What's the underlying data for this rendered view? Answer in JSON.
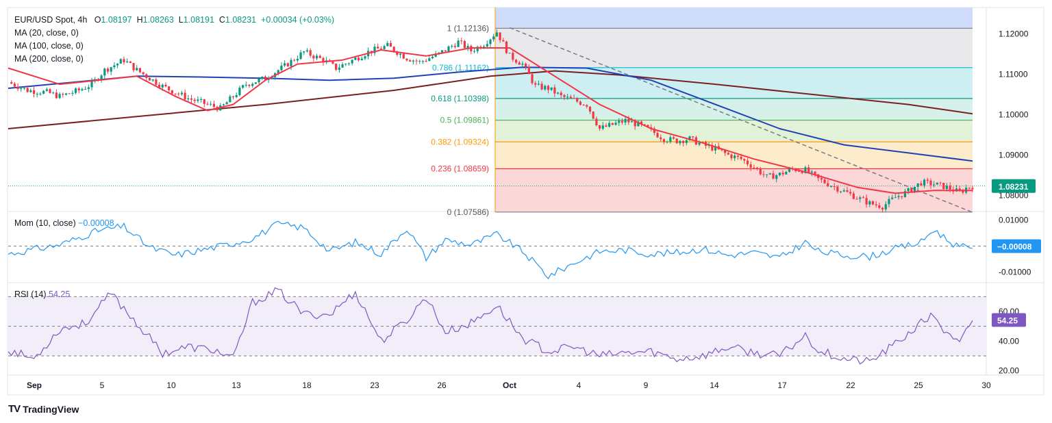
{
  "header": {
    "symbol": "EUR/USD Spot, 4h",
    "o_label": "O",
    "o": "1.08197",
    "h_label": "H",
    "h": "1.08263",
    "l_label": "L",
    "l": "1.08191",
    "c_label": "C",
    "c": "1.08231",
    "change": "+0.00034 (+0.03%)"
  },
  "indicators": {
    "ma20": "MA (20, close, 0)",
    "ma100": "MA (100, close, 0)",
    "ma200": "MA (200, close, 0)",
    "mom_label": "Mom (10, close)",
    "mom_value": "−0.00008",
    "rsi_label": "RSI (14)",
    "rsi_value": "54.25"
  },
  "brand": {
    "name": "TradingView",
    "logo": "TV"
  },
  "colors": {
    "up": "#089981",
    "down": "#f23645",
    "ma20": "#f23645",
    "ma100": "#2041b5",
    "ma200": "#7b1e22",
    "mom": "#2196f3",
    "rsi": "#7e57c2",
    "trend": "#787b86",
    "price_badge": "#089981",
    "mom_badge": "#2196f3",
    "rsi_badge": "#7e57c2"
  },
  "chart_data": [
    {
      "type": "candlestick",
      "title": "EUR/USD Spot, 4h",
      "x_ticks": [
        "Sep",
        "5",
        "10",
        "13",
        "18",
        "23",
        "26",
        "Oct",
        "4",
        "9",
        "14",
        "17",
        "22",
        "25",
        "30"
      ],
      "y_ticks": [
        "1.12000",
        "1.11000",
        "1.10000",
        "1.09000",
        "1.08000"
      ],
      "ylim": [
        1.076,
        1.1265
      ],
      "last_price": "1.08231",
      "close_path": [
        [
          0,
          1.108
        ],
        [
          3,
          1.106
        ],
        [
          6,
          1.1055
        ],
        [
          8,
          1.1045
        ],
        [
          11,
          1.106
        ],
        [
          13,
          1.1075
        ],
        [
          15,
          1.111
        ],
        [
          18,
          1.1135
        ],
        [
          20,
          1.111
        ],
        [
          22,
          1.109
        ],
        [
          24,
          1.107
        ],
        [
          26,
          1.1055
        ],
        [
          28,
          1.104
        ],
        [
          31,
          1.1025
        ],
        [
          33,
          1.1015
        ],
        [
          35,
          1.1045
        ],
        [
          37,
          1.1075
        ],
        [
          40,
          1.109
        ],
        [
          43,
          1.112
        ],
        [
          46,
          1.1155
        ],
        [
          49,
          1.1135
        ],
        [
          51,
          1.1115
        ],
        [
          53,
          1.113
        ],
        [
          56,
          1.1155
        ],
        [
          59,
          1.117
        ],
        [
          62,
          1.114
        ],
        [
          64,
          1.113
        ],
        [
          67,
          1.115
        ],
        [
          70,
          1.118
        ],
        [
          72,
          1.1158
        ],
        [
          74,
          1.1175
        ],
        [
          76,
          1.1205
        ],
        [
          78,
          1.1145
        ],
        [
          80,
          1.1125
        ],
        [
          82,
          1.107
        ],
        [
          84,
          1.1065
        ],
        [
          86,
          1.1045
        ],
        [
          88,
          1.1035
        ],
        [
          90,
          1.1025
        ],
        [
          92,
          1.0965
        ],
        [
          94,
          1.0975
        ],
        [
          96,
          1.0985
        ],
        [
          98,
          1.0975
        ],
        [
          100,
          1.096
        ],
        [
          102,
          1.094
        ],
        [
          104,
          1.0935
        ],
        [
          106,
          1.094
        ],
        [
          108,
          1.0925
        ],
        [
          110,
          1.0915
        ],
        [
          112,
          1.09
        ],
        [
          114,
          1.089
        ],
        [
          116,
          1.087
        ],
        [
          118,
          1.0845
        ],
        [
          120,
          1.0852
        ],
        [
          122,
          1.0865
        ],
        [
          124,
          1.0862
        ],
        [
          126,
          1.084
        ],
        [
          128,
          1.0825
        ],
        [
          130,
          1.081
        ],
        [
          132,
          1.0795
        ],
        [
          134,
          1.078
        ],
        [
          136,
          1.0773
        ],
        [
          138,
          1.0795
        ],
        [
          140,
          1.081
        ],
        [
          142,
          1.0832
        ],
        [
          144,
          1.0828
        ],
        [
          146,
          1.082
        ],
        [
          148,
          1.0807
        ],
        [
          149,
          1.0818
        ],
        [
          150,
          1.08231
        ]
      ],
      "fibonacci": [
        {
          "label": "1 (1.12136)",
          "level": 1.0,
          "price": 1.12136
        },
        {
          "label": "0.786 (1.11162)",
          "level": 0.786,
          "price": 1.11162
        },
        {
          "label": "0.618 (1.10398)",
          "level": 0.618,
          "price": 1.10398
        },
        {
          "label": "0.5 (1.09861)",
          "level": 0.5,
          "price": 1.09861
        },
        {
          "label": "0.382 (1.09324)",
          "level": 0.382,
          "price": 1.09324
        },
        {
          "label": "0.236 (1.08659)",
          "level": 0.236,
          "price": 1.08659
        },
        {
          "label": "0 (1.07586)",
          "level": 0.0,
          "price": 1.07586
        }
      ],
      "series": [
        {
          "name": "MA (20, close, 0)",
          "values": [
            [
              0,
              1.1115
            ],
            [
              8,
              1.1075
            ],
            [
              14,
              1.1085
            ],
            [
              20,
              1.1095
            ],
            [
              26,
              1.1045
            ],
            [
              31,
              1.101
            ],
            [
              35,
              1.1025
            ],
            [
              40,
              1.1085
            ],
            [
              45,
              1.1125
            ],
            [
              52,
              1.1135
            ],
            [
              58,
              1.116
            ],
            [
              65,
              1.1145
            ],
            [
              72,
              1.1165
            ],
            [
              78,
              1.1165
            ],
            [
              84,
              1.1105
            ],
            [
              92,
              1.1025
            ],
            [
              100,
              1.0965
            ],
            [
              108,
              1.093
            ],
            [
              116,
              1.089
            ],
            [
              124,
              1.0858
            ],
            [
              132,
              1.082
            ],
            [
              138,
              1.0805
            ],
            [
              144,
              1.0812
            ],
            [
              150,
              1.0812
            ]
          ]
        },
        {
          "name": "MA (100, close, 0)",
          "values": [
            [
              0,
              1.1065
            ],
            [
              10,
              1.108
            ],
            [
              20,
              1.1095
            ],
            [
              30,
              1.1093
            ],
            [
              40,
              1.109
            ],
            [
              50,
              1.1085
            ],
            [
              60,
              1.109
            ],
            [
              70,
              1.1105
            ],
            [
              80,
              1.1117
            ],
            [
              90,
              1.1115
            ],
            [
              100,
              1.1085
            ],
            [
              110,
              1.1025
            ],
            [
              120,
              1.0965
            ],
            [
              130,
              1.0925
            ],
            [
              140,
              1.0905
            ],
            [
              150,
              1.0885
            ]
          ]
        },
        {
          "name": "MA (200, close, 0)",
          "values": [
            [
              0,
              1.0965
            ],
            [
              20,
              1.0995
            ],
            [
              40,
              1.1025
            ],
            [
              60,
              1.106
            ],
            [
              75,
              1.1095
            ],
            [
              85,
              1.1108
            ],
            [
              95,
              1.1098
            ],
            [
              110,
              1.1075
            ],
            [
              125,
              1.105
            ],
            [
              140,
              1.1025
            ],
            [
              150,
              1.1002
            ]
          ]
        }
      ]
    },
    {
      "type": "line",
      "title": "Mom (10, close)",
      "y_ticks": [
        "0.01000",
        "-0.01000"
      ],
      "ylim": [
        -0.0135,
        0.0125
      ],
      "series": [
        {
          "name": "Mom (10, close)",
          "values": [
            [
              0,
              -0.003
            ],
            [
              8,
              0.0005
            ],
            [
              14,
              0.006
            ],
            [
              18,
              0.0075
            ],
            [
              22,
              -0.0005
            ],
            [
              26,
              -0.0035
            ],
            [
              30,
              -0.0015
            ],
            [
              34,
              0.0005
            ],
            [
              38,
              0.003
            ],
            [
              42,
              0.0085
            ],
            [
              46,
              0.007
            ],
            [
              50,
              -0.002
            ],
            [
              54,
              0.0015
            ],
            [
              58,
              -0.003
            ],
            [
              62,
              0.007
            ],
            [
              65,
              -0.0045
            ],
            [
              68,
              0.0025
            ],
            [
              72,
              0.0005
            ],
            [
              76,
              0.0045
            ],
            [
              80,
              -0.002
            ],
            [
              84,
              -0.0115
            ],
            [
              88,
              -0.0065
            ],
            [
              92,
              -0.002
            ],
            [
              96,
              -0.0015
            ],
            [
              100,
              -0.003
            ],
            [
              104,
              -0.0025
            ],
            [
              108,
              -0.001
            ],
            [
              112,
              -0.0035
            ],
            [
              116,
              -0.0025
            ],
            [
              120,
              -0.0045
            ],
            [
              124,
              0.0015
            ],
            [
              126,
              -0.002
            ],
            [
              130,
              -0.0035
            ],
            [
              134,
              -0.004
            ],
            [
              138,
              -0.001
            ],
            [
              142,
              0.0015
            ],
            [
              144,
              0.0065
            ],
            [
              146,
              0.0025
            ],
            [
              148,
              -0.0005
            ],
            [
              150,
              -8e-05
            ]
          ]
        }
      ]
    },
    {
      "type": "line",
      "title": "RSI (14)",
      "y_ticks": [
        "60.00",
        "40.00",
        "20.00"
      ],
      "ylim": [
        18,
        78
      ],
      "bands": [
        70,
        50,
        30
      ],
      "last_value": "54.25",
      "series": [
        {
          "name": "RSI (14)",
          "values": [
            [
              0,
              34
            ],
            [
              4,
              28
            ],
            [
              8,
              48
            ],
            [
              12,
              52
            ],
            [
              16,
              72
            ],
            [
              20,
              52
            ],
            [
              24,
              32
            ],
            [
              28,
              36
            ],
            [
              32,
              34
            ],
            [
              35,
              28
            ],
            [
              38,
              66
            ],
            [
              42,
              74
            ],
            [
              46,
              58
            ],
            [
              50,
              58
            ],
            [
              54,
              73
            ],
            [
              58,
              40
            ],
            [
              62,
              54
            ],
            [
              65,
              70
            ],
            [
              68,
              46
            ],
            [
              72,
              52
            ],
            [
              76,
              64
            ],
            [
              80,
              42
            ],
            [
              84,
              33
            ],
            [
              88,
              36
            ],
            [
              92,
              30
            ],
            [
              96,
              32
            ],
            [
              100,
              33
            ],
            [
              104,
              28
            ],
            [
              108,
              30
            ],
            [
              112,
              36
            ],
            [
              116,
              32
            ],
            [
              120,
              30
            ],
            [
              124,
              44
            ],
            [
              126,
              34
            ],
            [
              130,
              28
            ],
            [
              134,
              26
            ],
            [
              138,
              38
            ],
            [
              142,
              52
            ],
            [
              144,
              58
            ],
            [
              146,
              44
            ],
            [
              148,
              38
            ],
            [
              150,
              54.25
            ]
          ]
        }
      ]
    }
  ]
}
